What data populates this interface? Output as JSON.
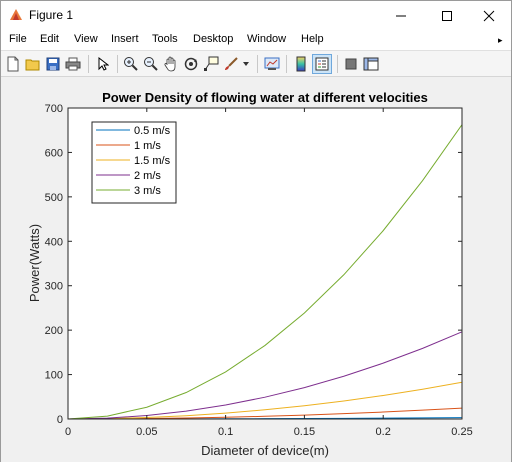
{
  "window": {
    "title": "Figure 1",
    "minimize_glyph": "—",
    "maximize_glyph": "☐",
    "close_glyph": "✕"
  },
  "menu": {
    "items": [
      "File",
      "Edit",
      "View",
      "Insert",
      "Tools",
      "Desktop",
      "Window",
      "Help"
    ],
    "overflow_glyph": "▸"
  },
  "toolbar": {
    "buttons": [
      {
        "name": "new-figure-icon"
      },
      {
        "name": "open-file-icon"
      },
      {
        "name": "save-icon"
      },
      {
        "name": "print-icon"
      },
      {
        "name": "edit-plot-arrow-icon"
      },
      {
        "name": "zoom-in-icon"
      },
      {
        "name": "zoom-out-icon"
      },
      {
        "name": "pan-hand-icon"
      },
      {
        "name": "rotate-3d-icon"
      },
      {
        "name": "data-cursor-icon"
      },
      {
        "name": "brush-icon"
      },
      {
        "name": "brush-dropdown-icon"
      },
      {
        "name": "link-plot-icon"
      },
      {
        "name": "insert-colorbar-icon"
      },
      {
        "name": "insert-legend-icon"
      },
      {
        "name": "hide-plot-tools-icon"
      },
      {
        "name": "show-plot-tools-icon"
      }
    ]
  },
  "chart_data": {
    "type": "line",
    "title": "Power Density of flowing water at different velocities",
    "xlabel": "Diameter of device(m)",
    "ylabel": "Power(Watts)",
    "xlim": [
      0,
      0.25
    ],
    "ylim": [
      0,
      700
    ],
    "xticks": [
      "0",
      "0.05",
      "0.1",
      "0.15",
      "0.2",
      "0.25"
    ],
    "xtick_values": [
      0,
      0.05,
      0.1,
      0.15,
      0.2,
      0.25
    ],
    "yticks": [
      "0",
      "100",
      "200",
      "300",
      "400",
      "500",
      "600",
      "700"
    ],
    "ytick_values": [
      0,
      100,
      200,
      300,
      400,
      500,
      600,
      700
    ],
    "grid": false,
    "legend_position": "top-left",
    "x": [
      0,
      0.025,
      0.05,
      0.075,
      0.1,
      0.125,
      0.15,
      0.175,
      0.2,
      0.225,
      0.25
    ],
    "series": [
      {
        "name": "0.5 m/s",
        "color": "#0072BD",
        "values": [
          0,
          0.03,
          0.12,
          0.28,
          0.49,
          0.77,
          1.1,
          1.5,
          2.0,
          2.5,
          3.1
        ]
      },
      {
        "name": "1 m/s",
        "color": "#D95319",
        "values": [
          0,
          0.25,
          0.98,
          2.2,
          3.9,
          6.1,
          8.8,
          12.0,
          15.7,
          19.9,
          24.5
        ]
      },
      {
        "name": "1.5 m/s",
        "color": "#EDB120",
        "values": [
          0,
          0.83,
          3.3,
          7.4,
          13.2,
          20.7,
          29.8,
          40.5,
          52.9,
          67.0,
          82.7
        ]
      },
      {
        "name": "2 m/s",
        "color": "#7E2F8E",
        "values": [
          0,
          1.96,
          7.8,
          17.6,
          31.4,
          49.1,
          70.7,
          96.2,
          125.7,
          159.0,
          196.3
        ]
      },
      {
        "name": "3 m/s",
        "color": "#77AC30",
        "values": [
          0,
          6.6,
          26.5,
          59.6,
          106.0,
          165.6,
          238.5,
          324.6,
          424.0,
          536.6,
          662.5
        ]
      }
    ]
  }
}
